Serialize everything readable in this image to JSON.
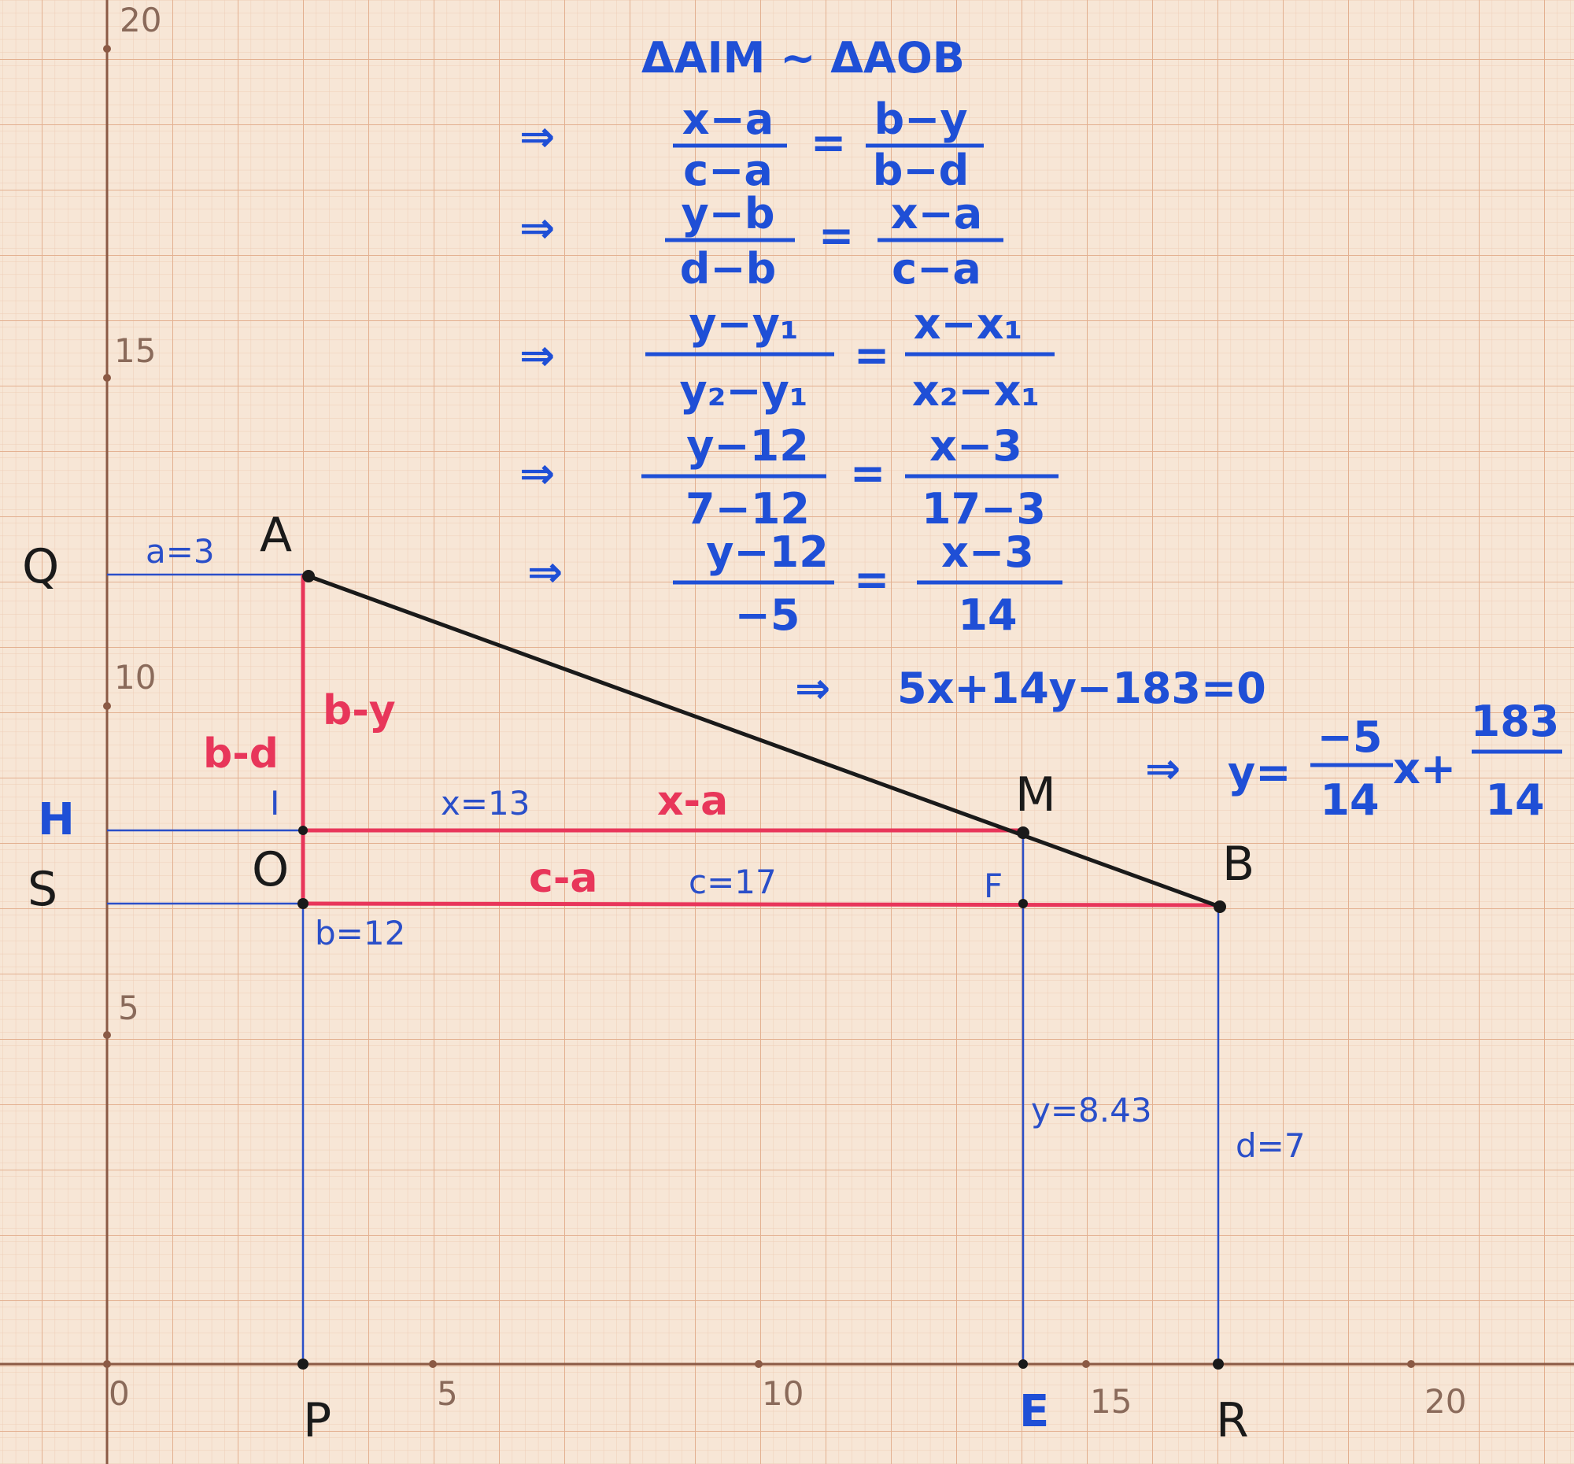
{
  "axis": {
    "x_ticks": [
      "0",
      "5",
      "10",
      "15",
      "20"
    ],
    "y_ticks": [
      "5",
      "10",
      "15",
      "20"
    ]
  },
  "points": {
    "Q": "Q",
    "A": "A",
    "H": "H",
    "I": "I",
    "S": "S",
    "O": "O",
    "M": "M",
    "F": "F",
    "B": "B",
    "P": "P",
    "E": "E",
    "R": "R"
  },
  "labels": {
    "a": "a=3",
    "b": "b=12",
    "x": "x=13",
    "c": "c=17",
    "y": "y=8.43",
    "d": "d=7",
    "b_minus_d": "b-d",
    "b_minus_y": "b-y",
    "x_minus_a": "x-a",
    "c_minus_a": "c-a"
  },
  "derivation": {
    "similarity": "ΔAIM ~ ΔAOB",
    "arrow": "⇒",
    "steps": [
      {
        "ln": "x−a",
        "ld": "c−a",
        "rn": "b−y",
        "rd": "b−d"
      },
      {
        "ln": "y−b",
        "ld": "d−b",
        "rn": "x−a",
        "rd": "c−a"
      },
      {
        "ln": "y−y₁",
        "ld": "y₂−y₁",
        "rn": "x−x₁",
        "rd": "x₂−x₁"
      },
      {
        "ln": "y−12",
        "ld": "7−12",
        "rn": "x−3",
        "rd": "17−3"
      },
      {
        "ln": "y−12",
        "ld": "−5",
        "rn": "x−3",
        "rd": "14"
      }
    ],
    "line_eq": "5x+14y−183=0",
    "slope_form": {
      "lhs": "y=",
      "n1": "−5",
      "d1": "14",
      "mid": "x+",
      "n2": "183",
      "d2": "14"
    }
  },
  "colors": {
    "paper": "#f7e6d6",
    "grid_minor": "#ecc9b0",
    "grid_major": "#e0ad8c",
    "axis": "#8b5a45",
    "blue_ink": "#1f4fd6",
    "red_ink": "#e8365a",
    "black_ink": "#1a1a1a"
  }
}
